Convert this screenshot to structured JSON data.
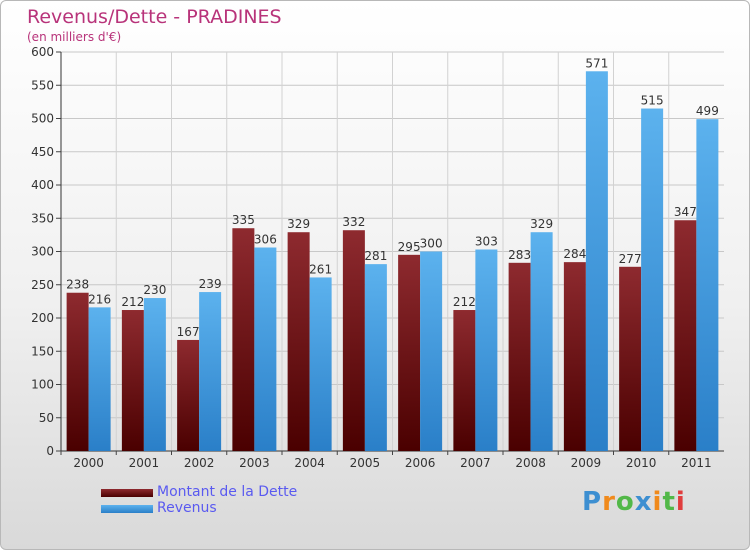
{
  "title": "Revenus/Dette - PRADINES",
  "subtitle": "(en milliers d'€)",
  "colors": {
    "title": "#b8337a",
    "dette": "#7b1f24",
    "revenus": "#4aa7e8",
    "legend_text": "#5a5af0"
  },
  "legend": [
    {
      "label": "Montant de la Dette",
      "color": "#7b1f24"
    },
    {
      "label": "Revenus",
      "color": "#4aa7e8"
    }
  ],
  "logo": {
    "text": "Proxiti",
    "letters": [
      "P",
      "r",
      "o",
      "x",
      "i",
      "t",
      "i"
    ],
    "letter_colors": [
      "#3d8fd1",
      "#f08a1c",
      "#52b848",
      "#3d8fd1",
      "#f08a1c",
      "#52b848",
      "#e03d3d"
    ]
  },
  "chart_data": {
    "type": "bar",
    "categories": [
      "2000",
      "2001",
      "2002",
      "2003",
      "2004",
      "2005",
      "2006",
      "2007",
      "2008",
      "2009",
      "2010",
      "2011"
    ],
    "series": [
      {
        "name": "Montant de la Dette",
        "values": [
          238,
          212,
          167,
          335,
          329,
          332,
          295,
          212,
          283,
          284,
          277,
          347
        ]
      },
      {
        "name": "Revenus",
        "values": [
          216,
          230,
          239,
          306,
          261,
          281,
          300,
          303,
          329,
          571,
          515,
          499
        ]
      }
    ],
    "ylim": [
      0,
      600
    ],
    "yticks": [
      0,
      50,
      100,
      150,
      200,
      250,
      300,
      350,
      400,
      450,
      500,
      550,
      600
    ],
    "grid": true,
    "legend_position": "bottom-left"
  }
}
